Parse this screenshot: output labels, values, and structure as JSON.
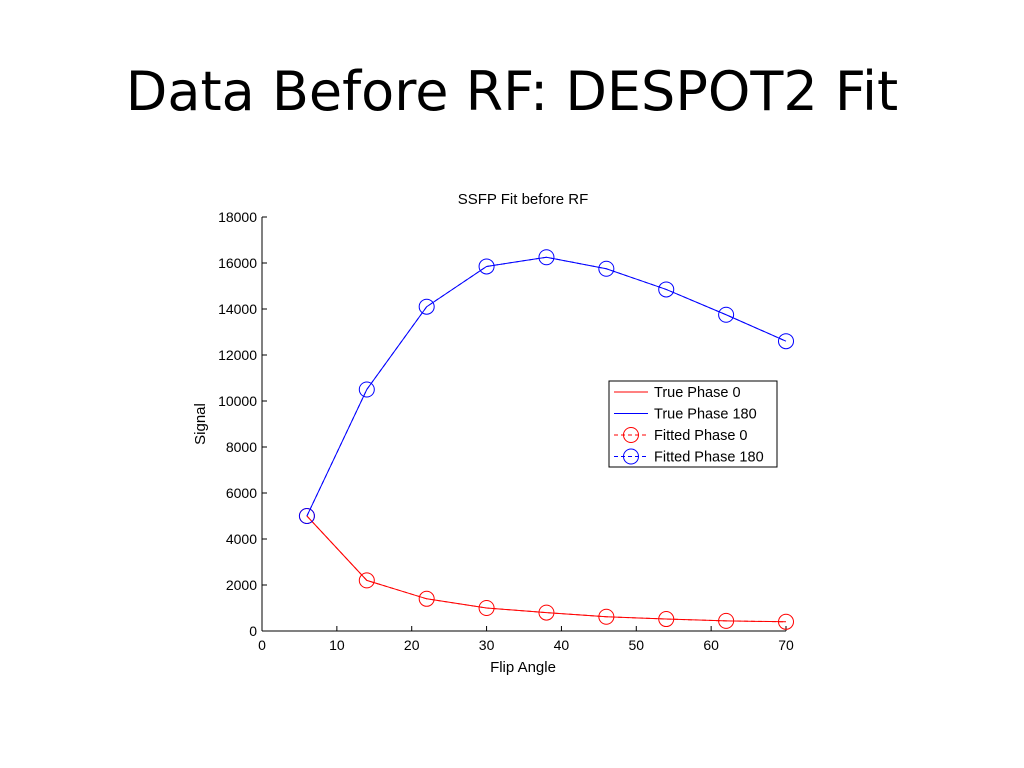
{
  "slide": {
    "title": "Data Before RF: DESPOT2 Fit"
  },
  "chart_data": {
    "type": "line",
    "title": "SSFP Fit before RF",
    "xlabel": "Flip Angle",
    "ylabel": "Signal",
    "xlim": [
      0,
      70
    ],
    "ylim": [
      0,
      18000
    ],
    "xticks": [
      0,
      10,
      20,
      30,
      40,
      50,
      60,
      70
    ],
    "yticks": [
      0,
      2000,
      4000,
      6000,
      8000,
      10000,
      12000,
      14000,
      16000,
      18000
    ],
    "grid": false,
    "legend_position": "right",
    "x": [
      6,
      14,
      22,
      30,
      38,
      46,
      54,
      62,
      70
    ],
    "series": [
      {
        "name": "True Phase 0",
        "color": "#ff0000",
        "style": "solid",
        "marker": "none",
        "values": [
          5000,
          2200,
          1400,
          1000,
          800,
          620,
          520,
          440,
          400
        ]
      },
      {
        "name": "True Phase 180",
        "color": "#0000ff",
        "style": "solid",
        "marker": "none",
        "values": [
          5000,
          10500,
          14100,
          15850,
          16250,
          15750,
          14850,
          13750,
          12600
        ]
      },
      {
        "name": "Fitted Phase 0",
        "color": "#ff0000",
        "style": "dashed",
        "marker": "circle",
        "values": [
          5000,
          2200,
          1400,
          1000,
          800,
          620,
          520,
          440,
          400
        ]
      },
      {
        "name": "Fitted Phase 180",
        "color": "#0000ff",
        "style": "dashed",
        "marker": "circle",
        "values": [
          5000,
          10500,
          14100,
          15850,
          16250,
          15750,
          14850,
          13750,
          12600
        ]
      }
    ]
  }
}
